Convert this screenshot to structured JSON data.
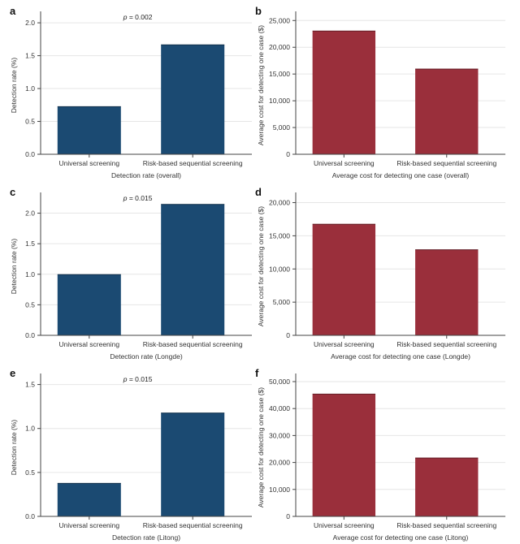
{
  "colors": {
    "detection_bar": "#1b4a72",
    "cost_bar": "#9a2f3b",
    "axis": "#444444",
    "grid": "#e6e6e6"
  },
  "chart_data": [
    {
      "panel": "a",
      "type": "bar",
      "categories": [
        "Universal screening",
        "Risk-based sequential screening"
      ],
      "values": [
        0.73,
        1.67
      ],
      "xlabel": "Detection rate (overall)",
      "ylabel": "Detection rate (%)",
      "ylim": [
        0,
        2.1
      ],
      "yticks": [
        0,
        0.5,
        1.0,
        1.5,
        2.0
      ],
      "yticklabels": [
        "0.0",
        "0.5",
        "1.0",
        "1.5",
        "2.0"
      ],
      "annotation": "p = 0.002",
      "grid": true
    },
    {
      "panel": "b",
      "type": "bar",
      "categories": [
        "Universal screening",
        "Risk-based sequential screening"
      ],
      "values": [
        23100,
        16000
      ],
      "xlabel": "Average cost for detecting one case (overall)",
      "ylabel": "Average cost for detecting one case ($)",
      "ylim": [
        0,
        25800
      ],
      "yticks": [
        0,
        5000,
        10000,
        15000,
        20000,
        25000
      ],
      "yticklabels": [
        "0",
        "5,000",
        "10,000",
        "15,000",
        "20,000",
        "25,000"
      ],
      "annotation": "",
      "grid": true
    },
    {
      "panel": "c",
      "type": "bar",
      "categories": [
        "Universal screening",
        "Risk-based sequential screening"
      ],
      "values": [
        1.0,
        2.15
      ],
      "xlabel": "Detection rate (Longde)",
      "ylabel": "Detection rate (%)",
      "ylim": [
        0,
        2.26
      ],
      "yticks": [
        0,
        0.5,
        1.0,
        1.5,
        2.0
      ],
      "yticklabels": [
        "0.0",
        "0.5",
        "1.0",
        "1.5",
        "2.0"
      ],
      "annotation": "p = 0.015",
      "grid": true
    },
    {
      "panel": "d",
      "type": "bar",
      "categories": [
        "Universal screening",
        "Risk-based sequential screening"
      ],
      "values": [
        16800,
        12950
      ],
      "xlabel": "Average cost for detecting one case (Longde)",
      "ylabel": "Average cost for detecting one case ($)",
      "ylim": [
        0,
        20800
      ],
      "yticks": [
        0,
        5000,
        10000,
        15000,
        20000
      ],
      "yticklabels": [
        "0",
        "5,000",
        "10,000",
        "15,000",
        "20,000"
      ],
      "annotation": "",
      "grid": true
    },
    {
      "panel": "e",
      "type": "bar",
      "categories": [
        "Universal screening",
        "Risk-based sequential screening"
      ],
      "values": [
        0.38,
        1.18
      ],
      "xlabel": "Detection rate (Litong)",
      "ylabel": "Detection rate (%)",
      "ylim": [
        0,
        1.57
      ],
      "yticks": [
        0,
        0.5,
        1.0,
        1.5
      ],
      "yticklabels": [
        "0.0",
        "0.5",
        "1.0",
        "1.5"
      ],
      "annotation": "p = 0.015",
      "grid": true
    },
    {
      "panel": "f",
      "type": "bar",
      "categories": [
        "Universal screening",
        "Risk-based sequential screening"
      ],
      "values": [
        45500,
        21800
      ],
      "xlabel": "Average cost for detecting one case (Litong)",
      "ylabel": "Average cost for detecting one case ($)",
      "ylim": [
        0,
        51200
      ],
      "yticks": [
        0,
        10000,
        20000,
        30000,
        40000,
        50000
      ],
      "yticklabels": [
        "0",
        "10,000",
        "20,000",
        "30,000",
        "40,000",
        "50,000"
      ],
      "annotation": "",
      "grid": true
    }
  ]
}
